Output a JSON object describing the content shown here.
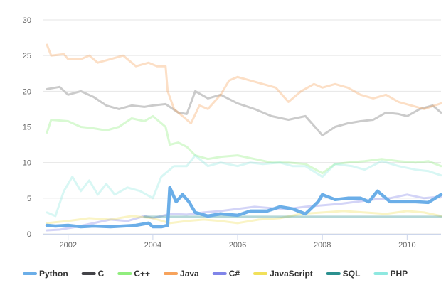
{
  "chart_data": {
    "type": "line",
    "title": "",
    "xlabel": "",
    "ylabel": "",
    "xlim": [
      2001.4,
      2010.8
    ],
    "ylim": [
      0,
      30
    ],
    "yticks": [
      "0",
      "5",
      "10",
      "15",
      "20",
      "25",
      "30"
    ],
    "xticks": [
      "2002",
      "2004",
      "2006",
      "2008",
      "2010"
    ],
    "grid": true,
    "legend_position": "bottom-left",
    "series": [
      {
        "name": "Python",
        "color": "#6baee8",
        "highlight": true,
        "points": [
          [
            2001.5,
            1.2
          ],
          [
            2001.7,
            1.1
          ],
          [
            2002.0,
            1.2
          ],
          [
            2002.3,
            1.0
          ],
          [
            2002.6,
            1.1
          ],
          [
            2003.0,
            1.0
          ],
          [
            2003.3,
            1.1
          ],
          [
            2003.6,
            1.2
          ],
          [
            2003.9,
            1.5
          ],
          [
            2004.0,
            1.0
          ],
          [
            2004.2,
            1.0
          ],
          [
            2004.35,
            1.2
          ],
          [
            2004.4,
            6.5
          ],
          [
            2004.55,
            4.5
          ],
          [
            2004.7,
            5.5
          ],
          [
            2004.85,
            4.5
          ],
          [
            2005.0,
            3.0
          ],
          [
            2005.3,
            2.5
          ],
          [
            2005.6,
            2.8
          ],
          [
            2006.0,
            2.6
          ],
          [
            2006.3,
            3.2
          ],
          [
            2006.7,
            3.2
          ],
          [
            2007.0,
            3.8
          ],
          [
            2007.3,
            3.5
          ],
          [
            2007.6,
            2.8
          ],
          [
            2007.9,
            4.5
          ],
          [
            2008.0,
            5.5
          ],
          [
            2008.3,
            4.8
          ],
          [
            2008.6,
            5.0
          ],
          [
            2008.9,
            5.0
          ],
          [
            2009.1,
            4.5
          ],
          [
            2009.3,
            6.0
          ],
          [
            2009.6,
            4.5
          ],
          [
            2009.9,
            4.5
          ],
          [
            2010.2,
            4.5
          ],
          [
            2010.5,
            4.4
          ],
          [
            2010.8,
            5.5
          ]
        ]
      },
      {
        "name": "C",
        "color": "#434348",
        "highlight": false,
        "points": [
          [
            2001.5,
            20.3
          ],
          [
            2001.8,
            20.6
          ],
          [
            2002.0,
            19.5
          ],
          [
            2002.3,
            20.0
          ],
          [
            2002.6,
            19.2
          ],
          [
            2002.9,
            18.0
          ],
          [
            2003.2,
            17.5
          ],
          [
            2003.5,
            18.0
          ],
          [
            2003.8,
            17.8
          ],
          [
            2004.0,
            18.0
          ],
          [
            2004.3,
            18.2
          ],
          [
            2004.6,
            17.0
          ],
          [
            2004.8,
            16.8
          ],
          [
            2005.0,
            20.0
          ],
          [
            2005.3,
            19.0
          ],
          [
            2005.6,
            19.5
          ],
          [
            2006.0,
            18.3
          ],
          [
            2006.4,
            17.5
          ],
          [
            2006.8,
            16.5
          ],
          [
            2007.2,
            16.0
          ],
          [
            2007.6,
            16.5
          ],
          [
            2007.9,
            14.5
          ],
          [
            2008.0,
            13.8
          ],
          [
            2008.3,
            15.0
          ],
          [
            2008.6,
            15.5
          ],
          [
            2008.9,
            15.8
          ],
          [
            2009.2,
            16.0
          ],
          [
            2009.5,
            17.0
          ],
          [
            2009.8,
            16.8
          ],
          [
            2010.0,
            16.5
          ],
          [
            2010.3,
            17.5
          ],
          [
            2010.6,
            18.0
          ],
          [
            2010.8,
            17.0
          ]
        ]
      },
      {
        "name": "C++",
        "color": "#90ed7d",
        "highlight": false,
        "points": [
          [
            2001.5,
            14.2
          ],
          [
            2001.6,
            16.0
          ],
          [
            2002.0,
            15.8
          ],
          [
            2002.3,
            15.0
          ],
          [
            2002.6,
            14.8
          ],
          [
            2002.9,
            14.5
          ],
          [
            2003.2,
            15.0
          ],
          [
            2003.5,
            16.2
          ],
          [
            2003.8,
            15.8
          ],
          [
            2004.0,
            16.5
          ],
          [
            2004.3,
            15.0
          ],
          [
            2004.4,
            12.5
          ],
          [
            2004.6,
            12.8
          ],
          [
            2004.8,
            12.2
          ],
          [
            2005.0,
            11.0
          ],
          [
            2005.3,
            10.5
          ],
          [
            2005.6,
            10.8
          ],
          [
            2006.0,
            11.0
          ],
          [
            2006.4,
            10.5
          ],
          [
            2006.8,
            10.0
          ],
          [
            2007.2,
            10.0
          ],
          [
            2007.6,
            9.8
          ],
          [
            2008.0,
            8.5
          ],
          [
            2008.3,
            9.8
          ],
          [
            2008.6,
            10.0
          ],
          [
            2009.0,
            10.2
          ],
          [
            2009.4,
            10.5
          ],
          [
            2009.8,
            10.2
          ],
          [
            2010.2,
            10.0
          ],
          [
            2010.5,
            10.2
          ],
          [
            2010.8,
            9.5
          ]
        ]
      },
      {
        "name": "Java",
        "color": "#f7a35c",
        "highlight": false,
        "points": [
          [
            2001.5,
            26.5
          ],
          [
            2001.6,
            25.0
          ],
          [
            2001.9,
            25.2
          ],
          [
            2002.0,
            24.5
          ],
          [
            2002.3,
            24.5
          ],
          [
            2002.5,
            25.0
          ],
          [
            2002.7,
            24.0
          ],
          [
            2003.0,
            24.5
          ],
          [
            2003.3,
            25.0
          ],
          [
            2003.6,
            23.5
          ],
          [
            2003.9,
            24.0
          ],
          [
            2004.1,
            23.5
          ],
          [
            2004.3,
            23.5
          ],
          [
            2004.35,
            20.0
          ],
          [
            2004.5,
            17.5
          ],
          [
            2004.7,
            16.5
          ],
          [
            2004.9,
            15.5
          ],
          [
            2005.1,
            18.0
          ],
          [
            2005.3,
            17.5
          ],
          [
            2005.6,
            19.5
          ],
          [
            2005.8,
            21.5
          ],
          [
            2006.0,
            22.0
          ],
          [
            2006.3,
            21.5
          ],
          [
            2006.6,
            21.0
          ],
          [
            2006.9,
            20.5
          ],
          [
            2007.2,
            18.5
          ],
          [
            2007.5,
            20.0
          ],
          [
            2007.8,
            21.0
          ],
          [
            2008.0,
            20.5
          ],
          [
            2008.3,
            21.0
          ],
          [
            2008.6,
            20.5
          ],
          [
            2008.9,
            19.5
          ],
          [
            2009.2,
            19.0
          ],
          [
            2009.5,
            19.5
          ],
          [
            2009.8,
            18.5
          ],
          [
            2010.1,
            18.0
          ],
          [
            2010.4,
            17.5
          ],
          [
            2010.8,
            18.3
          ]
        ]
      },
      {
        "name": "C#",
        "color": "#8085e9",
        "highlight": false,
        "points": [
          [
            2001.5,
            0.5
          ],
          [
            2001.8,
            0.6
          ],
          [
            2002.2,
            1.0
          ],
          [
            2002.6,
            1.5
          ],
          [
            2003.0,
            2.0
          ],
          [
            2003.4,
            1.8
          ],
          [
            2003.8,
            2.5
          ],
          [
            2004.0,
            2.2
          ],
          [
            2004.4,
            2.8
          ],
          [
            2004.8,
            2.7
          ],
          [
            2005.2,
            3.0
          ],
          [
            2005.6,
            3.2
          ],
          [
            2006.0,
            3.5
          ],
          [
            2006.4,
            3.8
          ],
          [
            2006.8,
            3.6
          ],
          [
            2007.2,
            3.5
          ],
          [
            2007.6,
            3.8
          ],
          [
            2008.0,
            4.0
          ],
          [
            2008.4,
            4.2
          ],
          [
            2008.8,
            4.5
          ],
          [
            2009.2,
            4.8
          ],
          [
            2009.6,
            5.0
          ],
          [
            2010.0,
            5.5
          ],
          [
            2010.4,
            5.0
          ],
          [
            2010.8,
            5.2
          ]
        ]
      },
      {
        "name": "JavaScript",
        "color": "#f1e05a",
        "highlight": false,
        "points": [
          [
            2001.5,
            1.5
          ],
          [
            2002.0,
            1.8
          ],
          [
            2002.5,
            2.2
          ],
          [
            2003.0,
            2.0
          ],
          [
            2003.5,
            2.5
          ],
          [
            2004.0,
            2.2
          ],
          [
            2004.4,
            1.5
          ],
          [
            2004.8,
            1.8
          ],
          [
            2005.2,
            2.0
          ],
          [
            2005.6,
            1.8
          ],
          [
            2006.0,
            1.5
          ],
          [
            2006.5,
            2.0
          ],
          [
            2007.0,
            2.2
          ],
          [
            2007.5,
            2.8
          ],
          [
            2008.0,
            3.0
          ],
          [
            2008.5,
            3.2
          ],
          [
            2009.0,
            3.0
          ],
          [
            2009.5,
            2.8
          ],
          [
            2010.0,
            3.2
          ],
          [
            2010.4,
            3.0
          ],
          [
            2010.8,
            2.5
          ]
        ]
      },
      {
        "name": "SQL",
        "color": "#2b908f",
        "highlight": false,
        "points": [
          [
            2003.8,
            2.4
          ],
          [
            2004.5,
            2.4
          ],
          [
            2005.5,
            2.4
          ],
          [
            2006.5,
            2.4
          ],
          [
            2007.5,
            2.4
          ],
          [
            2008.5,
            2.4
          ],
          [
            2009.5,
            2.4
          ],
          [
            2010.5,
            2.4
          ],
          [
            2010.8,
            2.4
          ]
        ]
      },
      {
        "name": "PHP",
        "color": "#8ee8e0",
        "highlight": false,
        "points": [
          [
            2001.5,
            3.0
          ],
          [
            2001.7,
            2.5
          ],
          [
            2001.9,
            6.0
          ],
          [
            2002.1,
            8.0
          ],
          [
            2002.3,
            6.0
          ],
          [
            2002.5,
            7.5
          ],
          [
            2002.7,
            5.5
          ],
          [
            2002.9,
            7.0
          ],
          [
            2003.1,
            5.5
          ],
          [
            2003.4,
            6.5
          ],
          [
            2003.7,
            6.0
          ],
          [
            2004.0,
            5.0
          ],
          [
            2004.2,
            8.0
          ],
          [
            2004.5,
            9.5
          ],
          [
            2004.8,
            9.5
          ],
          [
            2005.0,
            11.0
          ],
          [
            2005.3,
            9.5
          ],
          [
            2005.6,
            10.0
          ],
          [
            2006.0,
            9.5
          ],
          [
            2006.3,
            10.0
          ],
          [
            2006.6,
            9.8
          ],
          [
            2007.0,
            10.0
          ],
          [
            2007.3,
            9.5
          ],
          [
            2007.6,
            9.5
          ],
          [
            2008.0,
            8.0
          ],
          [
            2008.3,
            9.8
          ],
          [
            2008.7,
            9.5
          ],
          [
            2009.0,
            9.0
          ],
          [
            2009.4,
            10.2
          ],
          [
            2009.8,
            9.5
          ],
          [
            2010.2,
            9.0
          ],
          [
            2010.5,
            8.8
          ],
          [
            2010.8,
            8.2
          ]
        ]
      }
    ]
  }
}
